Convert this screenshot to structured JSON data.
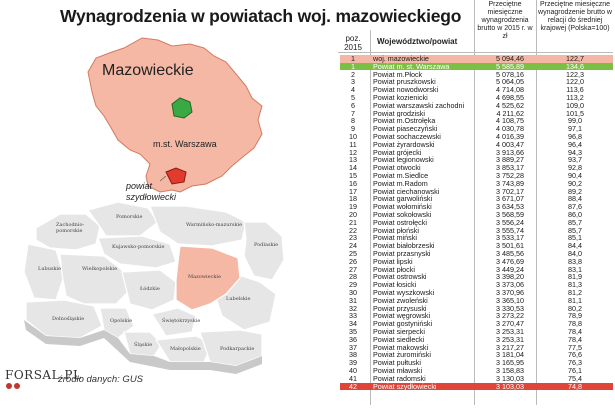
{
  "title": "Wynagrodzenia w powiatach woj. mazowieckiego",
  "map": {
    "region_label": "Mazowieckie",
    "capital_label": "m.st. Warszawa",
    "county_label_line1": "powiat",
    "county_label_line2": "szydłowiecki",
    "voivodeships": [
      "Zachodnio-pomorskie",
      "Pomorskie",
      "Warmińsko-mazurskie",
      "Kujawsko-pomorskie",
      "Podlaskie",
      "Lubuskie",
      "Wielkopolskie",
      "Mazowieckie",
      "Łódzkie",
      "Dolnośląskie",
      "Opolskie",
      "Świętokrzyskie",
      "Lubelskie",
      "Śląskie",
      "Małopolskie",
      "Podkarpackie"
    ]
  },
  "source": "źródło danych: GUS",
  "logo": "FORSAL.PL",
  "table_headers": {
    "position": "poz. 2015",
    "name": "Województwo/powiat",
    "col1": "Przeciętne miesięczne wynagrodzenia brutto w 2015 r. w zł",
    "col2": "Przeciętne miesięczne wynagrodzenie brutto w relacji do średniej krajowej (Polska=100)"
  },
  "chart_data": {
    "type": "table",
    "columns": [
      "poz. 2015",
      "Województwo/powiat",
      "Przeciętne miesięczne wynagrodzenia brutto w 2015 r. w zł",
      "Przeciętne miesięczne wynagrodzenie brutto w relacji do średniej krajowej (Polska=100)"
    ],
    "highlight_colors": {
      "region": "#f4b7a6",
      "top": "#7bbf44",
      "bottom": "#e0453a"
    },
    "rows": [
      {
        "pos": "1",
        "name": "woj. mazowieckie",
        "salary": "5 094,46",
        "index": "122,7",
        "hl": "region"
      },
      {
        "pos": "1",
        "name": "Powiat m. st. Warszawa",
        "salary": "5 585,89",
        "index": "134,6",
        "hl": "top"
      },
      {
        "pos": "2",
        "name": "Powiat m.Płock",
        "salary": "5 078,16",
        "index": "122,3"
      },
      {
        "pos": "3",
        "name": "Powiat pruszkowski",
        "salary": "5 064,05",
        "index": "122,0"
      },
      {
        "pos": "4",
        "name": "Powiat nowodworski",
        "salary": "4 714,08",
        "index": "113,6"
      },
      {
        "pos": "5",
        "name": "Powiat kozienicki",
        "salary": "4 698,55",
        "index": "113,2"
      },
      {
        "pos": "6",
        "name": "Powiat warszawski zachodni",
        "salary": "4 525,62",
        "index": "109,0"
      },
      {
        "pos": "7",
        "name": "Powiat grodziski",
        "salary": "4 211,62",
        "index": "101,5"
      },
      {
        "pos": "8",
        "name": "Powiat m.Ostrołęka",
        "salary": "4 108,75",
        "index": "99,0"
      },
      {
        "pos": "9",
        "name": "Powiat piaseczyński",
        "salary": "4 030,78",
        "index": "97,1"
      },
      {
        "pos": "10",
        "name": "Powiat sochaczewski",
        "salary": "4 016,39",
        "index": "96,8"
      },
      {
        "pos": "11",
        "name": "Powiat żyrardowski",
        "salary": "4 003,47",
        "index": "96,4"
      },
      {
        "pos": "12",
        "name": "Powiat grójecki",
        "salary": "3 913,66",
        "index": "94,3"
      },
      {
        "pos": "13",
        "name": "Powiat legionowski",
        "salary": "3 889,27",
        "index": "93,7"
      },
      {
        "pos": "14",
        "name": "Powiat otwocki",
        "salary": "3 853,17",
        "index": "92,8"
      },
      {
        "pos": "15",
        "name": "Powiat m.Siedlce",
        "salary": "3 752,28",
        "index": "90,4"
      },
      {
        "pos": "16",
        "name": "Powiat m.Radom",
        "salary": "3 743,89",
        "index": "90,2"
      },
      {
        "pos": "17",
        "name": "Powiat ciechanowski",
        "salary": "3 702,17",
        "index": "89,2"
      },
      {
        "pos": "18",
        "name": "Powiat garwoliński",
        "salary": "3 671,07",
        "index": "88,4"
      },
      {
        "pos": "19",
        "name": "Powiat wołomiński",
        "salary": "3 634,53",
        "index": "87,6"
      },
      {
        "pos": "20",
        "name": "Powiat sokołowski",
        "salary": "3 568,59",
        "index": "86,0"
      },
      {
        "pos": "21",
        "name": "Powiat ostrołęcki",
        "salary": "3 556,24",
        "index": "85,7"
      },
      {
        "pos": "22",
        "name": "Powiat płoński",
        "salary": "3 555,74",
        "index": "85,7"
      },
      {
        "pos": "23",
        "name": "Powiat miński",
        "salary": "3 533,17",
        "index": "85,1"
      },
      {
        "pos": "24",
        "name": "Powiat białobrzeski",
        "salary": "3 501,61",
        "index": "84,4"
      },
      {
        "pos": "25",
        "name": "Powiat przasnyski",
        "salary": "3 485,56",
        "index": "84,0"
      },
      {
        "pos": "26",
        "name": "Powiat lipski",
        "salary": "3 476,69",
        "index": "83,8"
      },
      {
        "pos": "27",
        "name": "Powiat płocki",
        "salary": "3 449,24",
        "index": "83,1"
      },
      {
        "pos": "28",
        "name": "Powiat ostrowski",
        "salary": "3 398,20",
        "index": "81,9"
      },
      {
        "pos": "29",
        "name": "Powiat łosicki",
        "salary": "3 373,06",
        "index": "81,3"
      },
      {
        "pos": "30",
        "name": "Powiat wyszkowski",
        "salary": "3 370,96",
        "index": "81,2"
      },
      {
        "pos": "31",
        "name": "Powiat zwoleński",
        "salary": "3 365,10",
        "index": "81,1"
      },
      {
        "pos": "32",
        "name": "Powiat przysuski",
        "salary": "3 330,53",
        "index": "80,2"
      },
      {
        "pos": "33",
        "name": "Powiat węgrowski",
        "salary": "3 273,22",
        "index": "78,9"
      },
      {
        "pos": "34",
        "name": "Powiat gostyniński",
        "salary": "3 270,47",
        "index": "78,8"
      },
      {
        "pos": "35",
        "name": "Powiat sierpecki",
        "salary": "3 253,31",
        "index": "78,4"
      },
      {
        "pos": "36",
        "name": "Powiat siedlecki",
        "salary": "3 253,31",
        "index": "78,4"
      },
      {
        "pos": "37",
        "name": "Powiat makowski",
        "salary": "3 217,27",
        "index": "77,5"
      },
      {
        "pos": "38",
        "name": "Powiat żuromiński",
        "salary": "3 181,04",
        "index": "76,6"
      },
      {
        "pos": "39",
        "name": "Powiat pułtuski",
        "salary": "3 165,95",
        "index": "76,3"
      },
      {
        "pos": "40",
        "name": "Powiat mławski",
        "salary": "3 158,83",
        "index": "76,1"
      },
      {
        "pos": "41",
        "name": "Powiat radomski",
        "salary": "3 130,03",
        "index": "75,4"
      },
      {
        "pos": "42",
        "name": "Powiat szydłowiecki",
        "salary": "3 103,03",
        "index": "74,8",
        "hl": "bottom"
      }
    ]
  }
}
